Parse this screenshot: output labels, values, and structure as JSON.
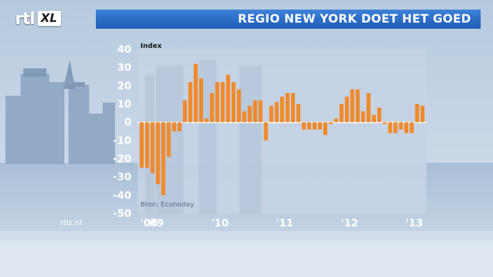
{
  "header": {
    "logo_text": "rtl",
    "logo_badge": "XL",
    "title": "REGIO NEW YORK DOET HET GOED"
  },
  "footer": {
    "brand": "rtlz.nl"
  },
  "colors": {
    "title_bar": "#2b6fcf",
    "bar_fill": "#f08a2c",
    "plot_bg": "#c7d4e6"
  },
  "chart_data": {
    "type": "bar",
    "ylabel": "Index",
    "source": "Bron: Econoday",
    "ylim": [
      -50,
      40
    ],
    "yticks": [
      40,
      30,
      20,
      10,
      0,
      -10,
      -20,
      -30,
      -40,
      -50
    ],
    "x_tick_labels": [
      "'08",
      "'09",
      "'10",
      "'11",
      "'12",
      "'13"
    ],
    "categories": [
      "2008-10",
      "2008-11",
      "2008-12",
      "2009-01",
      "2009-02",
      "2009-03",
      "2009-04",
      "2009-05",
      "2009-06",
      "2009-07",
      "2009-08",
      "2009-09",
      "2009-10",
      "2009-11",
      "2009-12",
      "2010-01",
      "2010-02",
      "2010-03",
      "2010-04",
      "2010-05",
      "2010-06",
      "2010-07",
      "2010-08",
      "2010-09",
      "2010-10",
      "2010-11",
      "2010-12",
      "2011-01",
      "2011-02",
      "2011-03",
      "2011-04",
      "2011-05",
      "2011-06",
      "2011-07",
      "2011-08",
      "2011-09",
      "2011-10",
      "2011-11",
      "2011-12",
      "2012-01",
      "2012-02",
      "2012-03",
      "2012-04",
      "2012-05",
      "2012-06",
      "2012-07",
      "2012-08",
      "2012-09",
      "2012-10",
      "2012-11",
      "2012-12",
      "2013-01",
      "2013-02"
    ],
    "values": [
      -25,
      -25,
      -28,
      -34,
      -40,
      -19,
      -5,
      -5,
      12,
      22,
      32,
      24,
      2,
      16,
      22,
      22,
      26,
      22,
      18,
      6,
      9,
      12,
      12,
      -10,
      9,
      11,
      14,
      16,
      16,
      10,
      -4,
      -4,
      -4,
      -4,
      -7,
      -1,
      2,
      10,
      14,
      18,
      18,
      6,
      16,
      4,
      8,
      -1,
      -6,
      -6,
      -4,
      -6,
      -6,
      10,
      9
    ]
  }
}
